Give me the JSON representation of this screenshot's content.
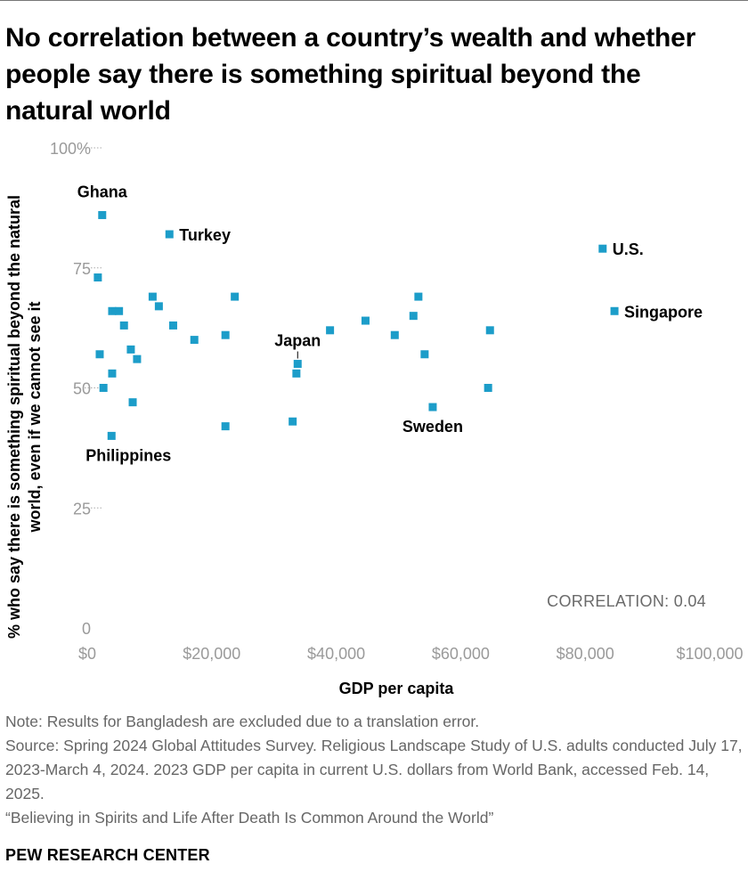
{
  "title": "No correlation between a country’s wealth and whether people say there is something spiritual beyond the natural world",
  "chart_data": {
    "type": "scatter",
    "title": "No correlation between a country’s wealth and whether people say there is something spiritual beyond the natural world",
    "xlabel": "GDP per capita",
    "ylabel": [
      "% who say there is something spiritual beyond the natural",
      "world, even if we cannot see it"
    ],
    "xlim": [
      0,
      100000
    ],
    "ylim": [
      0,
      100
    ],
    "x_ticks": [
      {
        "value": 0,
        "label": "$0"
      },
      {
        "value": 20000,
        "label": "$20,000"
      },
      {
        "value": 40000,
        "label": "$40,000"
      },
      {
        "value": 60000,
        "label": "$60,000"
      },
      {
        "value": 80000,
        "label": "$80,000"
      },
      {
        "value": 100000,
        "label": "$100,000"
      }
    ],
    "y_ticks": [
      {
        "value": 0,
        "label": "0"
      },
      {
        "value": 25,
        "label": "25"
      },
      {
        "value": 50,
        "label": "50"
      },
      {
        "value": 75,
        "label": "75"
      },
      {
        "value": 100,
        "label": "100%"
      }
    ],
    "grid": false,
    "annotation": "CORRELATION: 0.04",
    "point_color": "#1c9dc9",
    "points": [
      {
        "x": 2400,
        "y": 86,
        "label": "Ghana"
      },
      {
        "x": 13200,
        "y": 82,
        "label": "Turkey"
      },
      {
        "x": 82800,
        "y": 79,
        "label": "U.S."
      },
      {
        "x": 84700,
        "y": 66,
        "label": "Singapore"
      },
      {
        "x": 33800,
        "y": 55,
        "label": "Japan"
      },
      {
        "x": 55500,
        "y": 46,
        "label": "Sweden"
      },
      {
        "x": 3900,
        "y": 40,
        "label": "Philippines"
      },
      {
        "x": 1700,
        "y": 73
      },
      {
        "x": 10500,
        "y": 69
      },
      {
        "x": 23700,
        "y": 69
      },
      {
        "x": 53200,
        "y": 69
      },
      {
        "x": 11500,
        "y": 67
      },
      {
        "x": 4000,
        "y": 66
      },
      {
        "x": 5100,
        "y": 66
      },
      {
        "x": 52400,
        "y": 65
      },
      {
        "x": 44700,
        "y": 64
      },
      {
        "x": 5900,
        "y": 63
      },
      {
        "x": 13800,
        "y": 63
      },
      {
        "x": 39000,
        "y": 62
      },
      {
        "x": 64700,
        "y": 62
      },
      {
        "x": 22200,
        "y": 61
      },
      {
        "x": 49400,
        "y": 61
      },
      {
        "x": 17200,
        "y": 60
      },
      {
        "x": 7000,
        "y": 58
      },
      {
        "x": 2000,
        "y": 57
      },
      {
        "x": 54200,
        "y": 57
      },
      {
        "x": 8000,
        "y": 56
      },
      {
        "x": 4000,
        "y": 53
      },
      {
        "x": 33600,
        "y": 53
      },
      {
        "x": 2600,
        "y": 50
      },
      {
        "x": 64400,
        "y": 50
      },
      {
        "x": 7300,
        "y": 47
      },
      {
        "x": 33000,
        "y": 43
      },
      {
        "x": 22200,
        "y": 42
      }
    ]
  },
  "notes": {
    "note": "Note: Results for Bangladesh are excluded due to a translation error.",
    "source": "Source: Spring 2024 Global Attitudes Survey. Religious Landscape Study of U.S. adults conducted July 17, 2023-March 4, 2024. 2023 GDP per capita in current U.S. dollars from World Bank, accessed Feb. 14, 2025.",
    "report": "“Believing in Spirits and Life After Death Is Common Around the World”"
  },
  "brand": "PEW RESEARCH CENTER"
}
